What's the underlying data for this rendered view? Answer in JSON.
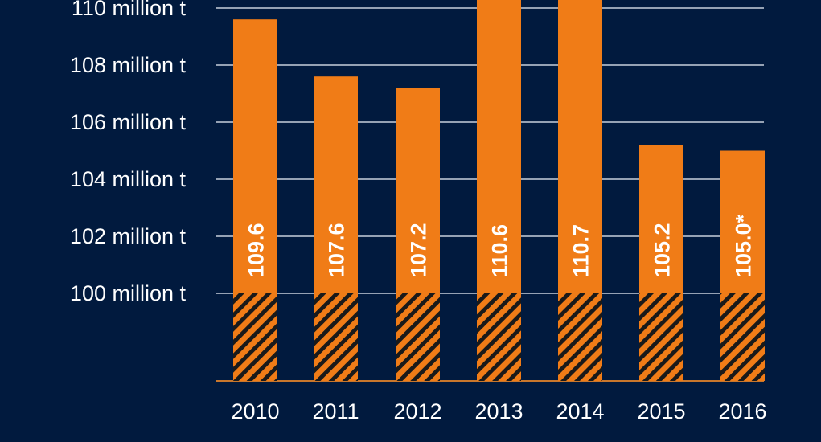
{
  "colors": {
    "background": "#011a3e",
    "bar": "#f07c17",
    "grid": "#c8d0dc",
    "baseline": "#c9772c"
  },
  "chart_data": {
    "type": "bar",
    "title": "",
    "xlabel": "",
    "ylabel": "",
    "categories": [
      "2010",
      "2011",
      "2012",
      "2013",
      "2014",
      "2015",
      "2016"
    ],
    "values": [
      109.6,
      107.6,
      107.2,
      110.6,
      110.7,
      105.2,
      105.0
    ],
    "data_labels": [
      "109.6",
      "107.6",
      "107.2",
      "110.6",
      "110.7",
      "105.2",
      "105.0*"
    ],
    "y_ticks": [
      {
        "value": 100,
        "label": "100 million t"
      },
      {
        "value": 102,
        "label": "102 million t"
      },
      {
        "value": 104,
        "label": "104 million t"
      },
      {
        "value": 106,
        "label": "106 million t"
      },
      {
        "value": 108,
        "label": "108 million t"
      },
      {
        "value": 110,
        "label": "110 million t"
      }
    ],
    "ylim": [
      100,
      110
    ],
    "axis_break": "hatched segment below 100 million t",
    "grid": true,
    "legend": "none"
  }
}
